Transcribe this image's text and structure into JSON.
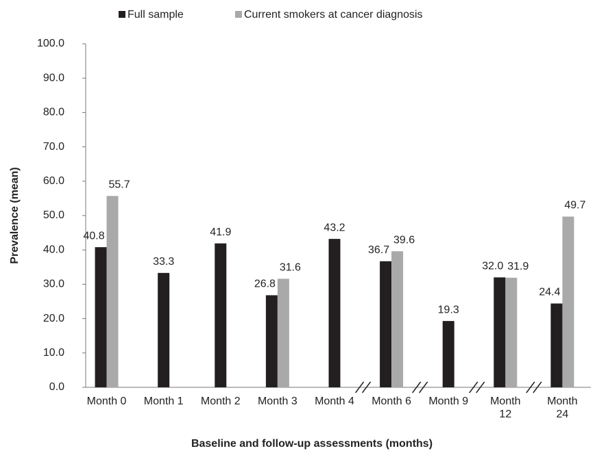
{
  "chart_data": {
    "type": "bar",
    "x_label": "Baseline and follow-up assessments (months)",
    "y_label": "Prevalence (mean)",
    "categories": [
      "Month 0",
      "Month 1",
      "Month 2",
      "Month 3",
      "Month 4",
      "Month 6",
      "Month 9",
      "Month 12",
      "Month 24"
    ],
    "series": [
      {
        "name": "Full sample",
        "color": "#231f20",
        "values": [
          40.8,
          33.3,
          41.9,
          26.8,
          43.2,
          36.7,
          19.3,
          32.0,
          24.4
        ],
        "value_labels": [
          "40.8",
          "33.3",
          "41.9",
          "26.8",
          "43.2",
          "36.7",
          "19.3",
          "32.0",
          "24.4"
        ]
      },
      {
        "name": "Current smokers at cancer diagnosis",
        "color": "#a9a9a9",
        "values": [
          55.7,
          null,
          null,
          31.6,
          null,
          39.6,
          null,
          31.9,
          49.7
        ],
        "value_labels": [
          "55.7",
          null,
          null,
          "31.6",
          null,
          "39.6",
          null,
          "31.9",
          "49.7"
        ]
      }
    ],
    "ylim": [
      0,
      100
    ],
    "yticks": [
      {
        "value": 0,
        "label": "0.0"
      },
      {
        "value": 10,
        "label": "10.0"
      },
      {
        "value": 20,
        "label": "20.0"
      },
      {
        "value": 30,
        "label": "30.0"
      },
      {
        "value": 40,
        "label": "40.0"
      },
      {
        "value": 50,
        "label": "50.0"
      },
      {
        "value": 60,
        "label": "60.0"
      },
      {
        "value": 70,
        "label": "70.0"
      },
      {
        "value": 80,
        "label": "80.0"
      },
      {
        "value": 90,
        "label": "90.0"
      },
      {
        "value": 100,
        "label": "100.0"
      }
    ],
    "grid": false,
    "legend": "top"
  }
}
